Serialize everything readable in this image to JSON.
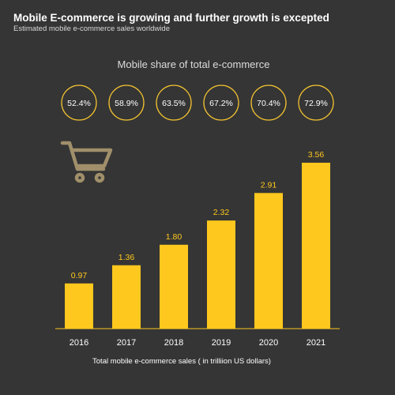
{
  "header": {
    "title": "Mobile E-commerce is growing and further growth is excepted",
    "subtitle": "Estimated mobile e-commerce sales worldwide"
  },
  "share": {
    "heading": "Mobile share of total e-commerce",
    "values": [
      "52.4%",
      "58.9%",
      "63.5%",
      "67.2%",
      "70.4%",
      "72.9%"
    ]
  },
  "colors": {
    "background": "#353535",
    "bar": "#FFC81E",
    "value_label": "#FFC81E",
    "circle_stroke": "#F2C230",
    "cart_icon": "#A08F6A"
  },
  "icons": {
    "cart": "shopping-cart-icon"
  },
  "chart_data": {
    "type": "bar",
    "title": "",
    "xlabel": "Total mobile e-commerce sales ( in trilliion US dollars)",
    "ylabel": "",
    "categories": [
      "2016",
      "2017",
      "2018",
      "2019",
      "2020",
      "2021"
    ],
    "values": [
      0.97,
      1.36,
      1.8,
      2.32,
      2.91,
      3.56
    ],
    "value_labels": [
      "0.97",
      "1.36",
      "1.80",
      "2.32",
      "2.91",
      "3.56"
    ],
    "ylim": [
      0,
      4.0
    ],
    "grid": false,
    "legend": "none"
  }
}
